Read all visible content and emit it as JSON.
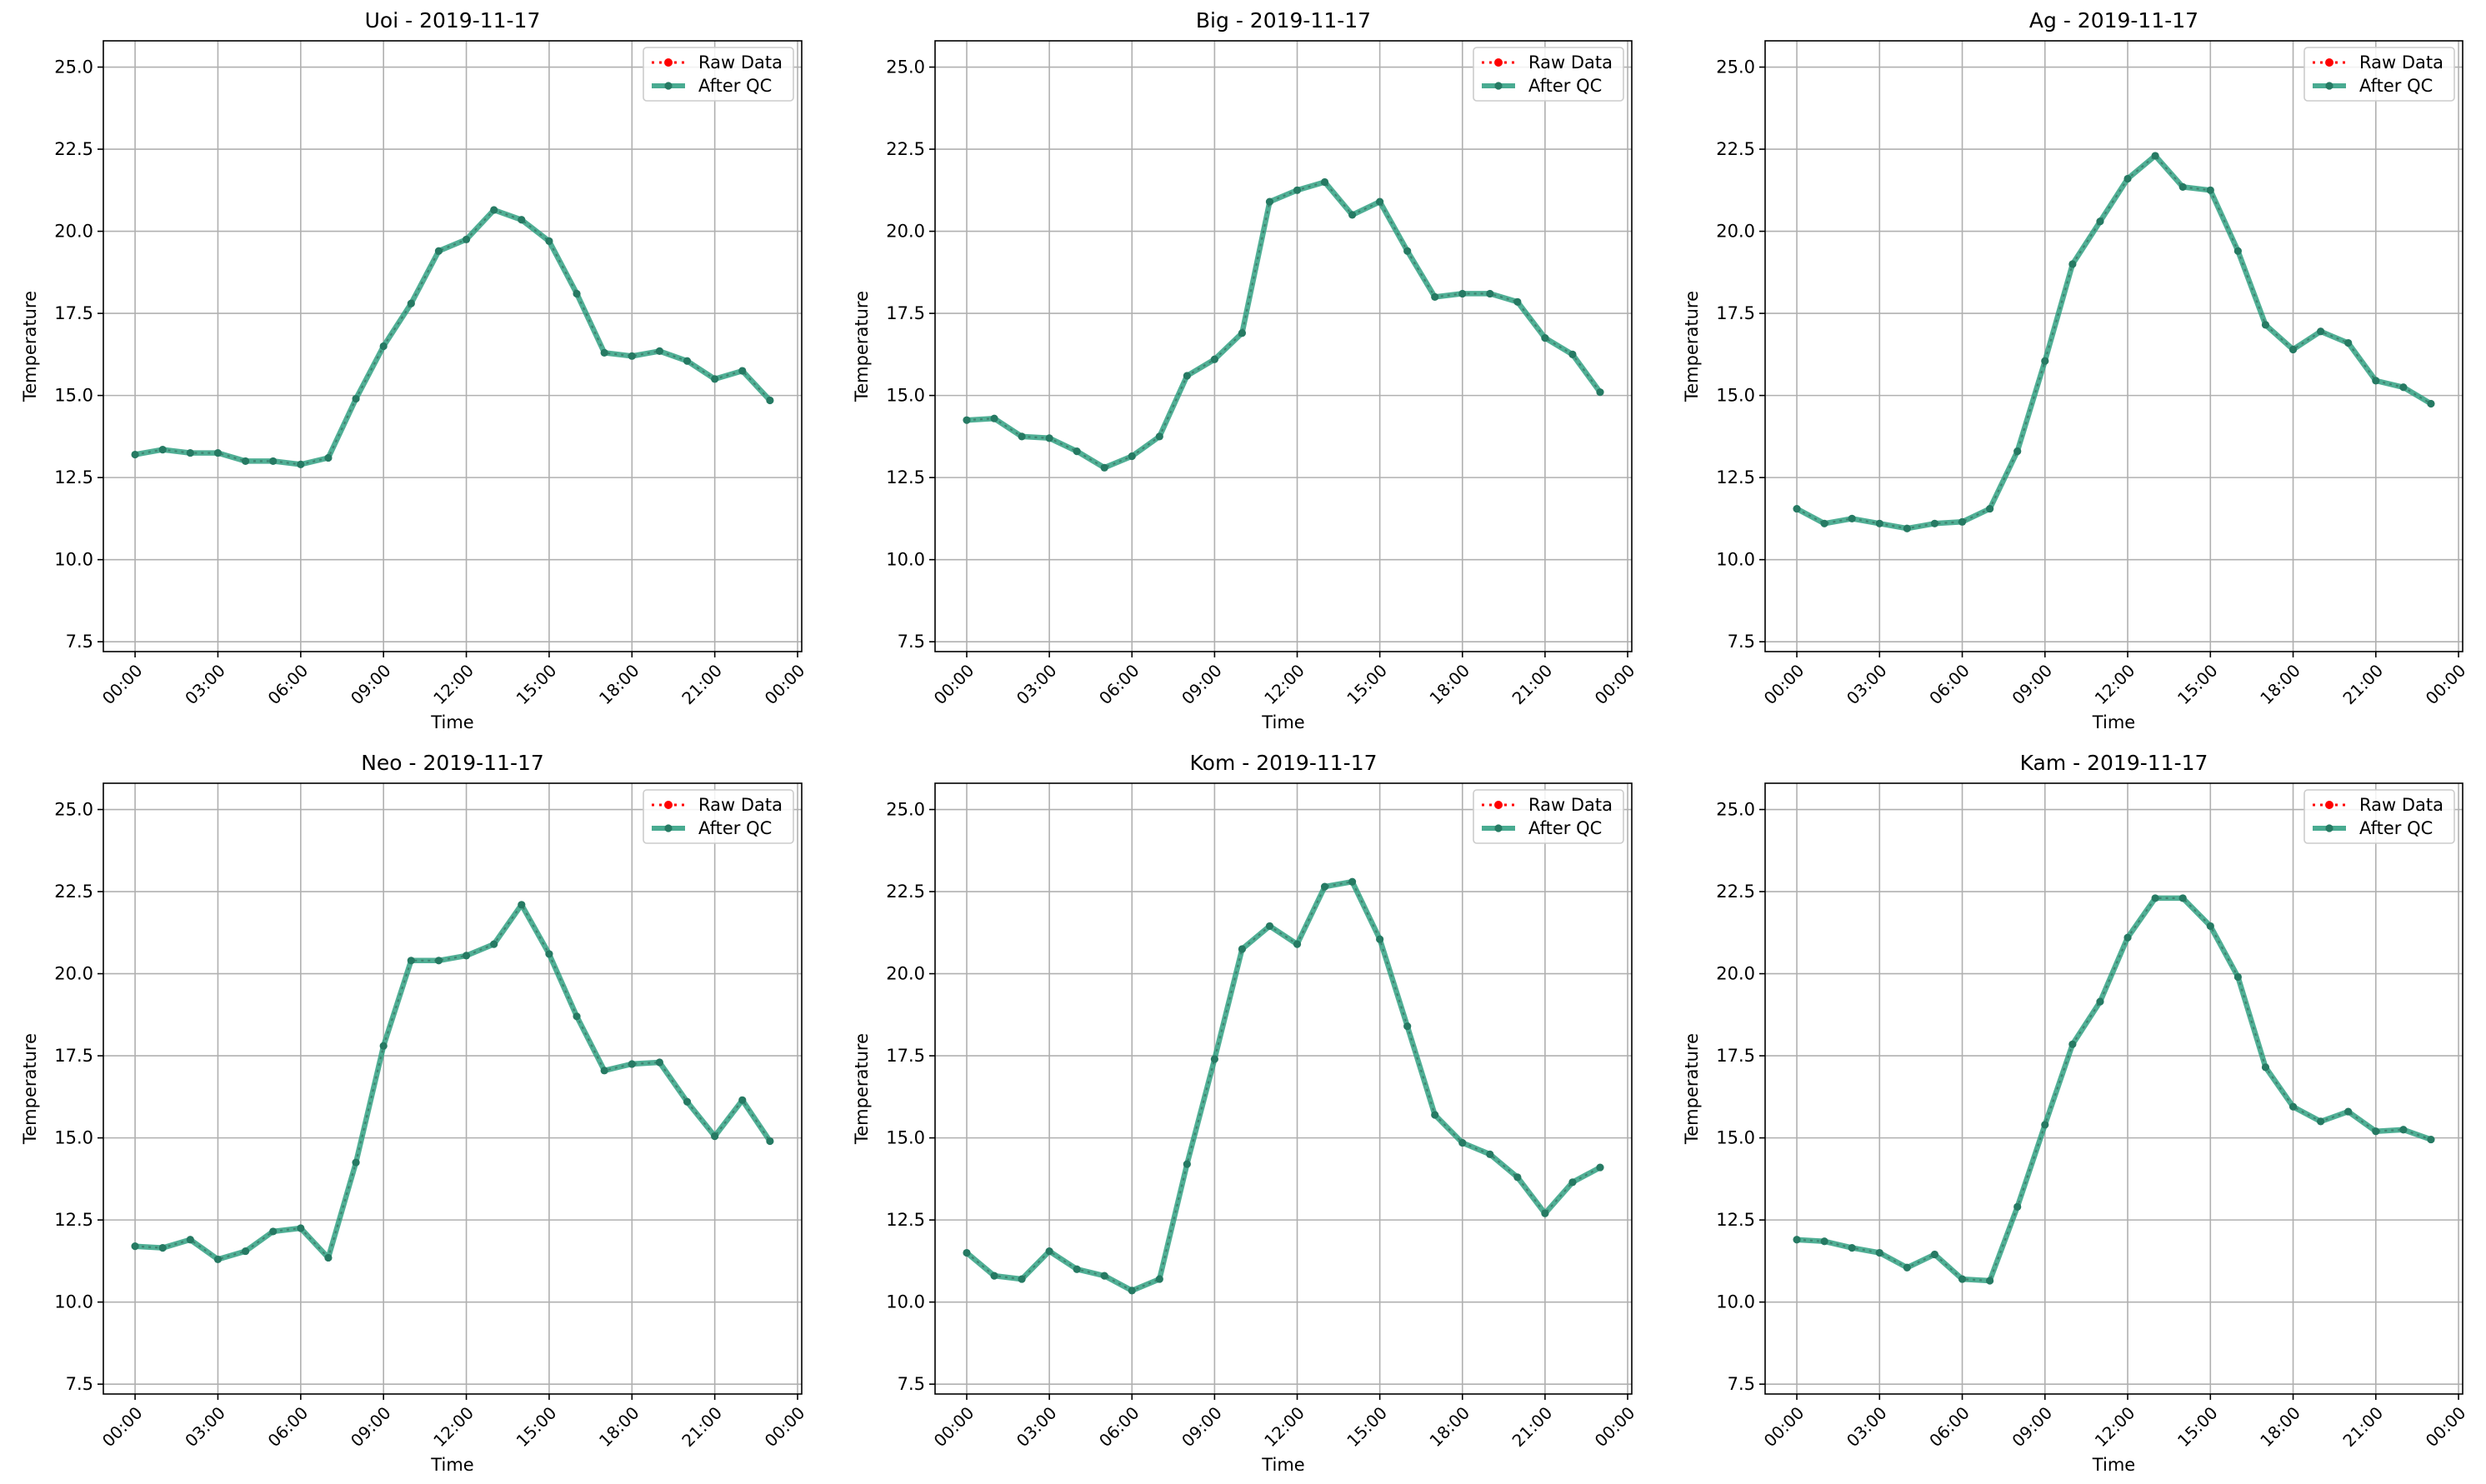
{
  "legend": {
    "raw_label": "Raw Data",
    "qc_label": "After QC"
  },
  "colors": {
    "raw": "#ff0000",
    "qc": "#2a9d7e",
    "grid": "#b0b0b0",
    "axis": "#000000"
  },
  "chart_data": [
    {
      "type": "line",
      "title": "Uoi - 2019-11-17",
      "xlabel": "Time",
      "ylabel": "Temperature",
      "x_tick_labels": [
        "00:00",
        "03:00",
        "06:00",
        "09:00",
        "12:00",
        "15:00",
        "18:00",
        "21:00",
        "00:00"
      ],
      "y_tick_labels": [
        "7.5",
        "10.0",
        "12.5",
        "15.0",
        "17.5",
        "20.0",
        "22.5",
        "25.0"
      ],
      "xlim_hours": [
        -1.15,
        24.15
      ],
      "ylim": [
        7.2,
        25.8
      ],
      "grid": true,
      "legend_position": "top-right",
      "x_hours": [
        0,
        1,
        2,
        3,
        4,
        5,
        6,
        7,
        8,
        9,
        10,
        11,
        12,
        13,
        14,
        15,
        16,
        17,
        18,
        19,
        20,
        21,
        22,
        23
      ],
      "series": [
        {
          "name": "Raw Data",
          "values": [
            13.2,
            13.35,
            13.25,
            13.25,
            13.0,
            13.0,
            12.9,
            13.1,
            14.9,
            16.5,
            17.8,
            19.4,
            19.75,
            20.65,
            20.35,
            19.7,
            18.1,
            16.3,
            16.2,
            16.35,
            16.05,
            15.5,
            15.75,
            14.85
          ]
        },
        {
          "name": "After QC",
          "values": [
            13.2,
            13.35,
            13.25,
            13.25,
            13.0,
            13.0,
            12.9,
            13.1,
            14.9,
            16.5,
            17.8,
            19.4,
            19.75,
            20.65,
            20.35,
            19.7,
            18.1,
            16.3,
            16.2,
            16.35,
            16.05,
            15.5,
            15.75,
            14.85
          ]
        }
      ]
    },
    {
      "type": "line",
      "title": "Big - 2019-11-17",
      "xlabel": "Time",
      "ylabel": "Temperature",
      "x_tick_labels": [
        "00:00",
        "03:00",
        "06:00",
        "09:00",
        "12:00",
        "15:00",
        "18:00",
        "21:00",
        "00:00"
      ],
      "y_tick_labels": [
        "7.5",
        "10.0",
        "12.5",
        "15.0",
        "17.5",
        "20.0",
        "22.5",
        "25.0"
      ],
      "xlim_hours": [
        -1.15,
        24.15
      ],
      "ylim": [
        7.2,
        25.8
      ],
      "grid": true,
      "legend_position": "top-right",
      "x_hours": [
        0,
        1,
        2,
        3,
        4,
        5,
        6,
        7,
        8,
        9,
        10,
        11,
        12,
        13,
        14,
        15,
        16,
        17,
        18,
        19,
        20,
        21,
        22,
        23
      ],
      "series": [
        {
          "name": "Raw Data",
          "values": [
            14.25,
            14.3,
            13.75,
            13.7,
            13.3,
            12.8,
            13.15,
            13.75,
            15.6,
            16.1,
            16.9,
            20.9,
            21.25,
            21.5,
            20.5,
            20.9,
            19.4,
            18.0,
            18.1,
            18.1,
            17.85,
            16.75,
            16.25,
            15.1
          ]
        },
        {
          "name": "After QC",
          "values": [
            14.25,
            14.3,
            13.75,
            13.7,
            13.3,
            12.8,
            13.15,
            13.75,
            15.6,
            16.1,
            16.9,
            20.9,
            21.25,
            21.5,
            20.5,
            20.9,
            19.4,
            18.0,
            18.1,
            18.1,
            17.85,
            16.75,
            16.25,
            15.1
          ]
        }
      ]
    },
    {
      "type": "line",
      "title": "Ag - 2019-11-17",
      "xlabel": "Time",
      "ylabel": "Temperature",
      "x_tick_labels": [
        "00:00",
        "03:00",
        "06:00",
        "09:00",
        "12:00",
        "15:00",
        "18:00",
        "21:00",
        "00:00"
      ],
      "y_tick_labels": [
        "7.5",
        "10.0",
        "12.5",
        "15.0",
        "17.5",
        "20.0",
        "22.5",
        "25.0"
      ],
      "xlim_hours": [
        -1.15,
        24.15
      ],
      "ylim": [
        7.2,
        25.8
      ],
      "grid": true,
      "legend_position": "top-right",
      "x_hours": [
        0,
        1,
        2,
        3,
        4,
        5,
        6,
        7,
        8,
        9,
        10,
        11,
        12,
        13,
        14,
        15,
        16,
        17,
        18,
        19,
        20,
        21,
        22,
        23
      ],
      "series": [
        {
          "name": "Raw Data",
          "values": [
            11.55,
            11.1,
            11.25,
            11.1,
            10.95,
            11.1,
            11.15,
            11.55,
            13.3,
            16.05,
            19.0,
            20.3,
            21.6,
            22.3,
            21.35,
            21.25,
            19.4,
            17.15,
            16.4,
            16.95,
            16.6,
            15.45,
            15.25,
            14.75
          ]
        },
        {
          "name": "After QC",
          "values": [
            11.55,
            11.1,
            11.25,
            11.1,
            10.95,
            11.1,
            11.15,
            11.55,
            13.3,
            16.05,
            19.0,
            20.3,
            21.6,
            22.3,
            21.35,
            21.25,
            19.4,
            17.15,
            16.4,
            16.95,
            16.6,
            15.45,
            15.25,
            14.75
          ]
        }
      ]
    },
    {
      "type": "line",
      "title": "Neo - 2019-11-17",
      "xlabel": "Time",
      "ylabel": "Temperature",
      "x_tick_labels": [
        "00:00",
        "03:00",
        "06:00",
        "09:00",
        "12:00",
        "15:00",
        "18:00",
        "21:00",
        "00:00"
      ],
      "y_tick_labels": [
        "7.5",
        "10.0",
        "12.5",
        "15.0",
        "17.5",
        "20.0",
        "22.5",
        "25.0"
      ],
      "xlim_hours": [
        -1.15,
        24.15
      ],
      "ylim": [
        7.2,
        25.8
      ],
      "grid": true,
      "legend_position": "top-right",
      "x_hours": [
        0,
        1,
        2,
        3,
        4,
        5,
        6,
        7,
        8,
        9,
        10,
        11,
        12,
        13,
        14,
        15,
        16,
        17,
        18,
        19,
        20,
        21,
        22,
        23
      ],
      "series": [
        {
          "name": "Raw Data",
          "values": [
            11.7,
            11.65,
            11.9,
            11.3,
            11.55,
            12.15,
            12.25,
            11.35,
            14.25,
            17.8,
            20.4,
            20.4,
            20.55,
            20.9,
            22.1,
            20.6,
            18.7,
            17.05,
            17.25,
            17.3,
            16.1,
            15.05,
            16.15,
            14.9
          ]
        },
        {
          "name": "After QC",
          "values": [
            11.7,
            11.65,
            11.9,
            11.3,
            11.55,
            12.15,
            12.25,
            11.35,
            14.25,
            17.8,
            20.4,
            20.4,
            20.55,
            20.9,
            22.1,
            20.6,
            18.7,
            17.05,
            17.25,
            17.3,
            16.1,
            15.05,
            16.15,
            14.9
          ]
        }
      ]
    },
    {
      "type": "line",
      "title": "Kom - 2019-11-17",
      "xlabel": "Time",
      "ylabel": "Temperature",
      "x_tick_labels": [
        "00:00",
        "03:00",
        "06:00",
        "09:00",
        "12:00",
        "15:00",
        "18:00",
        "21:00",
        "00:00"
      ],
      "y_tick_labels": [
        "7.5",
        "10.0",
        "12.5",
        "15.0",
        "17.5",
        "20.0",
        "22.5",
        "25.0"
      ],
      "xlim_hours": [
        -1.15,
        24.15
      ],
      "ylim": [
        7.2,
        25.8
      ],
      "grid": true,
      "legend_position": "top-right",
      "x_hours": [
        0,
        1,
        2,
        3,
        4,
        5,
        6,
        7,
        8,
        9,
        10,
        11,
        12,
        13,
        14,
        15,
        16,
        17,
        18,
        19,
        20,
        21,
        22,
        23
      ],
      "series": [
        {
          "name": "Raw Data",
          "values": [
            11.5,
            10.8,
            10.7,
            11.55,
            11.0,
            10.8,
            10.35,
            10.7,
            14.2,
            17.4,
            20.75,
            21.45,
            20.9,
            22.65,
            22.8,
            21.05,
            18.4,
            15.7,
            14.85,
            14.5,
            13.8,
            12.7,
            13.65,
            14.1
          ]
        },
        {
          "name": "After QC",
          "values": [
            11.5,
            10.8,
            10.7,
            11.55,
            11.0,
            10.8,
            10.35,
            10.7,
            14.2,
            17.4,
            20.75,
            21.45,
            20.9,
            22.65,
            22.8,
            21.05,
            18.4,
            15.7,
            14.85,
            14.5,
            13.8,
            12.7,
            13.65,
            14.1
          ]
        }
      ]
    },
    {
      "type": "line",
      "title": "Kam - 2019-11-17",
      "xlabel": "Time",
      "ylabel": "Temperature",
      "x_tick_labels": [
        "00:00",
        "03:00",
        "06:00",
        "09:00",
        "12:00",
        "15:00",
        "18:00",
        "21:00",
        "00:00"
      ],
      "y_tick_labels": [
        "7.5",
        "10.0",
        "12.5",
        "15.0",
        "17.5",
        "20.0",
        "22.5",
        "25.0"
      ],
      "xlim_hours": [
        -1.15,
        24.15
      ],
      "ylim": [
        7.2,
        25.8
      ],
      "grid": true,
      "legend_position": "top-right",
      "x_hours": [
        0,
        1,
        2,
        3,
        4,
        5,
        6,
        7,
        8,
        9,
        10,
        11,
        12,
        13,
        14,
        15,
        16,
        17,
        18,
        19,
        20,
        21,
        22,
        23
      ],
      "series": [
        {
          "name": "Raw Data",
          "values": [
            11.9,
            11.85,
            11.65,
            11.5,
            11.05,
            11.45,
            10.7,
            10.65,
            12.9,
            15.4,
            17.85,
            19.15,
            21.1,
            22.3,
            22.3,
            21.45,
            19.9,
            17.15,
            15.95,
            15.5,
            15.8,
            15.2,
            15.25,
            14.95
          ]
        },
        {
          "name": "After QC",
          "values": [
            11.9,
            11.85,
            11.65,
            11.5,
            11.05,
            11.45,
            10.7,
            10.65,
            12.9,
            15.4,
            17.85,
            19.15,
            21.1,
            22.3,
            22.3,
            21.45,
            19.9,
            17.15,
            15.95,
            15.5,
            15.8,
            15.2,
            15.25,
            14.95
          ]
        }
      ]
    }
  ]
}
